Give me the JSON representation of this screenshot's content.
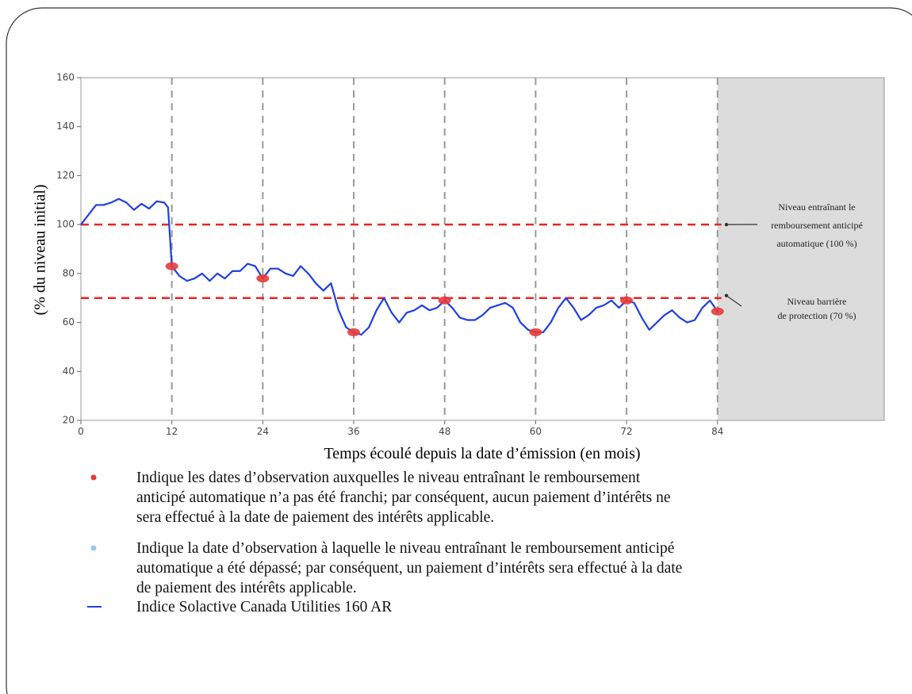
{
  "chart_data": {
    "type": "line",
    "y_label": "(% du niveau initial)",
    "x_label": "Temps écoulé depuis la date d’émission (en mois)",
    "xlim": [
      0,
      106
    ],
    "ylim": [
      20,
      160
    ],
    "xticks": [
      0,
      12,
      24,
      36,
      48,
      60,
      72,
      84
    ],
    "yticks": [
      20,
      40,
      60,
      80,
      100,
      120,
      140,
      160
    ],
    "grid": true,
    "shade_from": 84,
    "series": [
      {
        "name": "Indice Solactive Canada Utilities 160 AR",
        "color": "#1f3fe0",
        "x": [
          0,
          1,
          2,
          3,
          4,
          5,
          6,
          7,
          8,
          9,
          10,
          11,
          11.5,
          12,
          13,
          14,
          15,
          16,
          17,
          18,
          19,
          20,
          21,
          22,
          23,
          24,
          25,
          26,
          27,
          28,
          29,
          30,
          31,
          32,
          33,
          34,
          35,
          36,
          37,
          38,
          39,
          40,
          41,
          42,
          43,
          44,
          45,
          46,
          47,
          48,
          49,
          50,
          51,
          52,
          53,
          54,
          55,
          56,
          57,
          58,
          59,
          60,
          61,
          62,
          63,
          64,
          65,
          66,
          67,
          68,
          69,
          70,
          71,
          72,
          73,
          74,
          75,
          76,
          77,
          78,
          79,
          80,
          81,
          82,
          83,
          84
        ],
        "values": [
          100,
          104,
          108,
          108,
          109,
          110.5,
          109,
          106,
          108.5,
          106.5,
          109.5,
          109,
          107,
          83,
          79,
          77,
          78,
          80,
          77,
          80,
          78,
          81,
          81,
          84,
          83,
          78,
          82,
          82,
          80,
          79,
          83,
          80,
          76,
          73,
          76,
          65,
          58,
          56,
          55,
          58,
          65,
          70,
          64,
          60,
          64,
          65,
          67,
          65,
          66,
          69,
          66,
          62,
          61,
          61,
          63,
          66,
          67,
          68,
          66,
          60,
          57,
          56,
          56,
          60,
          66,
          70,
          66,
          61,
          63,
          66,
          67,
          69,
          66,
          69,
          68,
          62,
          57,
          60,
          63,
          65,
          62,
          60,
          61,
          66,
          69,
          64.5
        ]
      }
    ],
    "observations": {
      "color": "#e83a3a",
      "x": [
        12,
        24,
        36,
        48,
        60,
        72,
        84
      ],
      "values": [
        83,
        78,
        56,
        69,
        56,
        69,
        64.5
      ]
    },
    "reference_lines": {
      "color": "#ee2222",
      "values": [
        100,
        70
      ]
    },
    "annotations": [
      {
        "lines": [
          "Niveau entraînant le",
          "remboursement anticipé",
          "automatique (100 %)"
        ]
      },
      {
        "lines": [
          "Niveau barrière",
          "de  protection (70 %)"
        ]
      }
    ],
    "legend_items": [
      {
        "color": "#e83a3a",
        "lines": [
          "Indique les dates d’observation auxquelles le niveau entraînant le remboursement",
          "anticipé automatique n’a pas été franchi; par conséquent, aucun paiement d’intérêts ne",
          "sera effectué à la date de paiement des intérêts applicable."
        ]
      },
      {
        "color": "#9cc6f0",
        "lines": [
          "Indique la date d’observation à laquelle le niveau entraînant le remboursement anticipé",
          "automatique a été dépassé; par conséquent, un paiement d’intérêts sera effectué à la date",
          "de paiement des intérêts applicable."
        ]
      }
    ]
  }
}
